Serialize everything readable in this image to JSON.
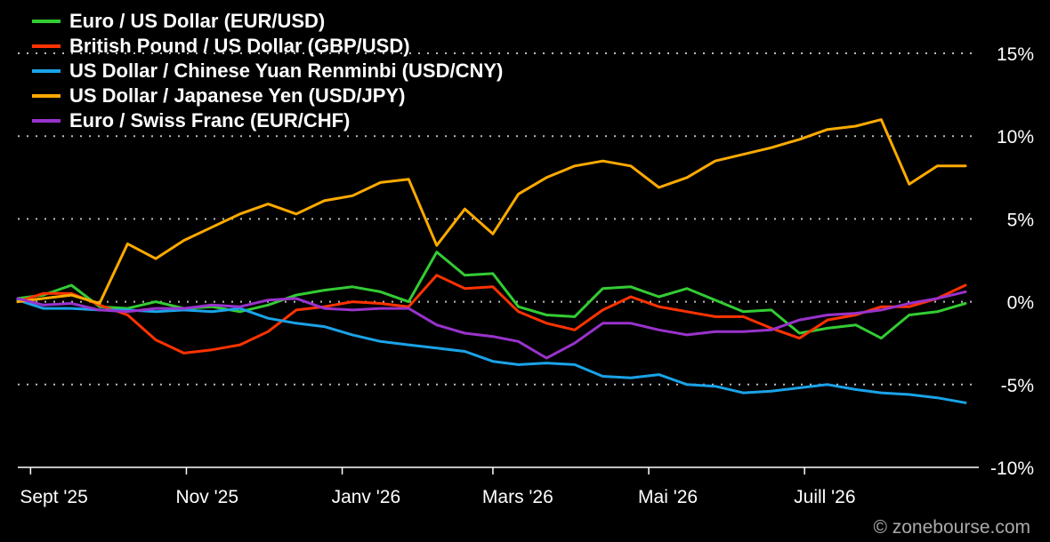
{
  "chart_data": {
    "type": "line",
    "title": "",
    "xlabel": "",
    "ylabel": "",
    "ylim": [
      -10,
      15
    ],
    "yticks": [
      15,
      10,
      5,
      0,
      -5,
      -10
    ],
    "ytick_labels": [
      "15%",
      "10%",
      "5%",
      "0%",
      "-5%",
      "-10%"
    ],
    "x_domain": [
      "2025-08-27",
      "2026-09-02"
    ],
    "xticks": [
      {
        "date": "2025-09-01",
        "label": "Sept '25"
      },
      {
        "date": "2025-11-01",
        "label": "Nov '25"
      },
      {
        "date": "2026-01-01",
        "label": "Janv '26"
      },
      {
        "date": "2026-03-01",
        "label": "Mars '26"
      },
      {
        "date": "2026-05-01",
        "label": "Mai '26"
      },
      {
        "date": "2026-07-01",
        "label": "Juill '26"
      }
    ],
    "grid": true,
    "legend_position": "top-left",
    "series": [
      {
        "name": "Euro / US Dollar (EUR/USD)",
        "color": "#33cc33",
        "points": [
          [
            "2025-08-27",
            0.2
          ],
          [
            "2025-09-06",
            0.4
          ],
          [
            "2025-09-17",
            1.0
          ],
          [
            "2025-09-28",
            -0.3
          ],
          [
            "2025-10-09",
            -0.4
          ],
          [
            "2025-10-20",
            0.0
          ],
          [
            "2025-10-31",
            -0.4
          ],
          [
            "2025-11-11",
            -0.3
          ],
          [
            "2025-11-22",
            -0.6
          ],
          [
            "2025-12-03",
            -0.2
          ],
          [
            "2025-12-14",
            0.4
          ],
          [
            "2025-12-25",
            0.7
          ],
          [
            "2026-01-05",
            0.9
          ],
          [
            "2026-01-16",
            0.6
          ],
          [
            "2026-01-27",
            0.0
          ],
          [
            "2026-02-07",
            3.0
          ],
          [
            "2026-02-18",
            1.6
          ],
          [
            "2026-02-29",
            1.7
          ],
          [
            "2026-03-11",
            -0.3
          ],
          [
            "2026-03-22",
            -0.8
          ],
          [
            "2026-04-02",
            -0.9
          ],
          [
            "2026-04-13",
            0.8
          ],
          [
            "2026-04-24",
            0.9
          ],
          [
            "2026-05-05",
            0.3
          ],
          [
            "2026-05-16",
            0.8
          ],
          [
            "2026-05-27",
            0.1
          ],
          [
            "2026-06-07",
            -0.6
          ],
          [
            "2026-06-18",
            -0.5
          ],
          [
            "2026-06-29",
            -1.9
          ],
          [
            "2026-07-10",
            -1.6
          ],
          [
            "2026-07-21",
            -1.4
          ],
          [
            "2026-07-31",
            -2.2
          ],
          [
            "2026-08-11",
            -0.8
          ],
          [
            "2026-08-22",
            -0.6
          ],
          [
            "2026-09-02",
            -0.1
          ]
        ]
      },
      {
        "name": "British Pound / US Dollar (GBP/USD)",
        "color": "#ff3300",
        "points": [
          [
            "2025-08-27",
            0.0
          ],
          [
            "2025-09-06",
            0.5
          ],
          [
            "2025-09-17",
            0.5
          ],
          [
            "2025-09-28",
            -0.2
          ],
          [
            "2025-10-09",
            -0.8
          ],
          [
            "2025-10-20",
            -2.3
          ],
          [
            "2025-10-31",
            -3.1
          ],
          [
            "2025-11-11",
            -2.9
          ],
          [
            "2025-11-22",
            -2.6
          ],
          [
            "2025-12-03",
            -1.8
          ],
          [
            "2025-12-14",
            -0.5
          ],
          [
            "2025-12-25",
            -0.3
          ],
          [
            "2026-01-05",
            0.0
          ],
          [
            "2026-01-16",
            -0.1
          ],
          [
            "2026-01-27",
            -0.3
          ],
          [
            "2026-02-07",
            1.6
          ],
          [
            "2026-02-18",
            0.8
          ],
          [
            "2026-02-29",
            0.9
          ],
          [
            "2026-03-11",
            -0.6
          ],
          [
            "2026-03-22",
            -1.3
          ],
          [
            "2026-04-02",
            -1.7
          ],
          [
            "2026-04-13",
            -0.5
          ],
          [
            "2026-04-24",
            0.3
          ],
          [
            "2026-05-05",
            -0.3
          ],
          [
            "2026-05-16",
            -0.6
          ],
          [
            "2026-05-27",
            -0.9
          ],
          [
            "2026-06-07",
            -0.9
          ],
          [
            "2026-06-18",
            -1.6
          ],
          [
            "2026-06-29",
            -2.2
          ],
          [
            "2026-07-10",
            -1.1
          ],
          [
            "2026-07-21",
            -0.8
          ],
          [
            "2026-07-31",
            -0.3
          ],
          [
            "2026-08-11",
            -0.3
          ],
          [
            "2026-08-22",
            0.2
          ],
          [
            "2026-09-02",
            1.0
          ]
        ]
      },
      {
        "name": "US Dollar / Chinese Yuan Renminbi (USD/CNY)",
        "color": "#1aa3e8",
        "points": [
          [
            "2025-08-27",
            0.1
          ],
          [
            "2025-09-06",
            -0.4
          ],
          [
            "2025-09-17",
            -0.4
          ],
          [
            "2025-09-28",
            -0.5
          ],
          [
            "2025-10-09",
            -0.5
          ],
          [
            "2025-10-20",
            -0.6
          ],
          [
            "2025-10-31",
            -0.5
          ],
          [
            "2025-11-11",
            -0.6
          ],
          [
            "2025-11-22",
            -0.4
          ],
          [
            "2025-12-03",
            -1.0
          ],
          [
            "2025-12-14",
            -1.3
          ],
          [
            "2025-12-25",
            -1.5
          ],
          [
            "2026-01-05",
            -2.0
          ],
          [
            "2026-01-16",
            -2.4
          ],
          [
            "2026-01-27",
            -2.6
          ],
          [
            "2026-02-07",
            -2.8
          ],
          [
            "2026-02-18",
            -3.0
          ],
          [
            "2026-02-29",
            -3.6
          ],
          [
            "2026-03-11",
            -3.8
          ],
          [
            "2026-03-22",
            -3.7
          ],
          [
            "2026-04-02",
            -3.8
          ],
          [
            "2026-04-13",
            -4.5
          ],
          [
            "2026-04-24",
            -4.6
          ],
          [
            "2026-05-05",
            -4.4
          ],
          [
            "2026-05-16",
            -5.0
          ],
          [
            "2026-05-27",
            -5.1
          ],
          [
            "2026-06-07",
            -5.5
          ],
          [
            "2026-06-18",
            -5.4
          ],
          [
            "2026-06-29",
            -5.2
          ],
          [
            "2026-07-10",
            -5.0
          ],
          [
            "2026-07-21",
            -5.3
          ],
          [
            "2026-07-31",
            -5.5
          ],
          [
            "2026-08-11",
            -5.6
          ],
          [
            "2026-08-22",
            -5.8
          ],
          [
            "2026-09-02",
            -6.1
          ]
        ]
      },
      {
        "name": "US Dollar / Japanese Yen (USD/JPY)",
        "color": "#ffaa00",
        "points": [
          [
            "2025-08-27",
            0.0
          ],
          [
            "2025-09-06",
            0.2
          ],
          [
            "2025-09-17",
            0.4
          ],
          [
            "2025-09-28",
            -0.1
          ],
          [
            "2025-10-09",
            3.5
          ],
          [
            "2025-10-20",
            2.6
          ],
          [
            "2025-10-31",
            3.7
          ],
          [
            "2025-11-11",
            4.5
          ],
          [
            "2025-11-22",
            5.3
          ],
          [
            "2025-12-03",
            5.9
          ],
          [
            "2025-12-14",
            5.3
          ],
          [
            "2025-12-25",
            6.1
          ],
          [
            "2026-01-05",
            6.4
          ],
          [
            "2026-01-16",
            7.2
          ],
          [
            "2026-01-27",
            7.4
          ],
          [
            "2026-02-07",
            3.4
          ],
          [
            "2026-02-18",
            5.6
          ],
          [
            "2026-02-29",
            4.1
          ],
          [
            "2026-03-11",
            6.5
          ],
          [
            "2026-03-22",
            7.5
          ],
          [
            "2026-04-02",
            8.2
          ],
          [
            "2026-04-13",
            8.5
          ],
          [
            "2026-04-24",
            8.2
          ],
          [
            "2026-05-05",
            6.9
          ],
          [
            "2026-05-16",
            7.5
          ],
          [
            "2026-05-27",
            8.5
          ],
          [
            "2026-06-07",
            8.9
          ],
          [
            "2026-06-18",
            9.3
          ],
          [
            "2026-06-29",
            9.8
          ],
          [
            "2026-07-10",
            10.4
          ],
          [
            "2026-07-21",
            10.6
          ],
          [
            "2026-07-31",
            11.0
          ],
          [
            "2026-08-11",
            7.1
          ],
          [
            "2026-08-22",
            8.2
          ],
          [
            "2026-09-02",
            8.2
          ]
        ]
      },
      {
        "name": "Euro / Swiss Franc (EUR/CHF)",
        "color": "#9933cc",
        "points": [
          [
            "2025-08-27",
            0.2
          ],
          [
            "2025-09-06",
            -0.2
          ],
          [
            "2025-09-17",
            -0.1
          ],
          [
            "2025-09-28",
            -0.5
          ],
          [
            "2025-10-09",
            -0.6
          ],
          [
            "2025-10-20",
            -0.4
          ],
          [
            "2025-10-31",
            -0.4
          ],
          [
            "2025-11-11",
            -0.2
          ],
          [
            "2025-11-22",
            -0.3
          ],
          [
            "2025-12-03",
            0.1
          ],
          [
            "2025-12-14",
            0.2
          ],
          [
            "2025-12-25",
            -0.4
          ],
          [
            "2026-01-05",
            -0.5
          ],
          [
            "2026-01-16",
            -0.4
          ],
          [
            "2026-01-27",
            -0.4
          ],
          [
            "2026-02-07",
            -1.4
          ],
          [
            "2026-02-18",
            -1.9
          ],
          [
            "2026-02-29",
            -2.1
          ],
          [
            "2026-03-11",
            -2.4
          ],
          [
            "2026-03-22",
            -3.4
          ],
          [
            "2026-04-02",
            -2.5
          ],
          [
            "2026-04-13",
            -1.3
          ],
          [
            "2026-04-24",
            -1.3
          ],
          [
            "2026-05-05",
            -1.7
          ],
          [
            "2026-05-16",
            -2.0
          ],
          [
            "2026-05-27",
            -1.8
          ],
          [
            "2026-06-07",
            -1.8
          ],
          [
            "2026-06-18",
            -1.7
          ],
          [
            "2026-06-29",
            -1.1
          ],
          [
            "2026-07-10",
            -0.8
          ],
          [
            "2026-07-21",
            -0.7
          ],
          [
            "2026-07-31",
            -0.5
          ],
          [
            "2026-08-11",
            -0.1
          ],
          [
            "2026-08-22",
            0.2
          ],
          [
            "2026-09-02",
            0.6
          ]
        ]
      }
    ]
  },
  "watermark": "© zonebourse.com"
}
